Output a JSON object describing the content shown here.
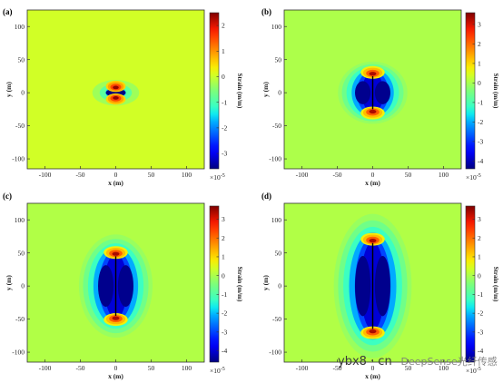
{
  "chart_data": [
    {
      "type": "heatmap",
      "panel": "(a)",
      "xlabel": "x (m)",
      "ylabel": "y (m)",
      "xlim": [
        -125,
        125
      ],
      "ylim": [
        -115,
        125
      ],
      "xticks": [
        -100,
        -50,
        0,
        50,
        100
      ],
      "yticks": [
        100,
        50,
        0,
        -50,
        -100
      ],
      "crack_y_extent": [
        -3,
        3
      ],
      "strain_min": -3.6,
      "strain_max": 2.4,
      "colorbar": {
        "label": "Strain (m/m)",
        "ticks": [
          2,
          1,
          0,
          -1,
          -2,
          -3
        ],
        "exponent_text": "×10",
        "exponent": "-5",
        "range": [
          -3.6,
          2.5
        ]
      }
    },
    {
      "type": "heatmap",
      "panel": "(b)",
      "xlabel": "x (m)",
      "ylabel": "y (m)",
      "xlim": [
        -125,
        125
      ],
      "ylim": [
        -115,
        125
      ],
      "xticks": [
        -100,
        -50,
        0,
        50,
        100
      ],
      "yticks": [
        100,
        50,
        0,
        -50,
        -100
      ],
      "crack_y_extent": [
        -25,
        25
      ],
      "strain_min": -4.3,
      "strain_max": 3.3,
      "colorbar": {
        "label": "Strain (m/m)",
        "ticks": [
          3,
          2,
          1,
          0,
          -1,
          -2,
          -3,
          -4
        ],
        "exponent_text": "×10",
        "exponent": "-5",
        "range": [
          -4.4,
          3.6
        ]
      }
    },
    {
      "type": "heatmap",
      "panel": "(c)",
      "xlabel": "x (m)",
      "ylabel": "y (m)",
      "xlim": [
        -125,
        125
      ],
      "ylim": [
        -115,
        125
      ],
      "xticks": [
        -100,
        -50,
        0,
        50,
        100
      ],
      "yticks": [
        100,
        50,
        0,
        -50,
        -100
      ],
      "crack_y_extent": [
        -45,
        45
      ],
      "strain_min": -4.5,
      "strain_max": 3.4,
      "colorbar": {
        "label": "Strain (m/m)",
        "ticks": [
          3,
          2,
          1,
          0,
          -1,
          -2,
          -3,
          -4
        ],
        "exponent_text": "×10",
        "exponent": "-5",
        "range": [
          -4.6,
          3.7
        ]
      }
    },
    {
      "type": "heatmap",
      "panel": "(d)",
      "xlabel": "x (m)",
      "ylabel": "y (m)",
      "xlim": [
        -125,
        125
      ],
      "ylim": [
        -115,
        125
      ],
      "xticks": [
        -100,
        -50,
        0,
        50,
        100
      ],
      "yticks": [
        100,
        50,
        0,
        -50,
        -100
      ],
      "crack_y_extent": [
        -65,
        65
      ],
      "strain_min": -4.5,
      "strain_max": 3.4,
      "colorbar": {
        "label": "Strain (m/m)",
        "ticks": [
          3,
          2,
          1,
          0,
          -1,
          -2,
          -3,
          -4
        ],
        "exponent_text": "×10",
        "exponent": "-5",
        "range": [
          -4.6,
          3.7
        ]
      }
    }
  ],
  "watermark": {
    "site": "ybx8 · cn",
    "brand": "DeepSense光纤传感"
  }
}
